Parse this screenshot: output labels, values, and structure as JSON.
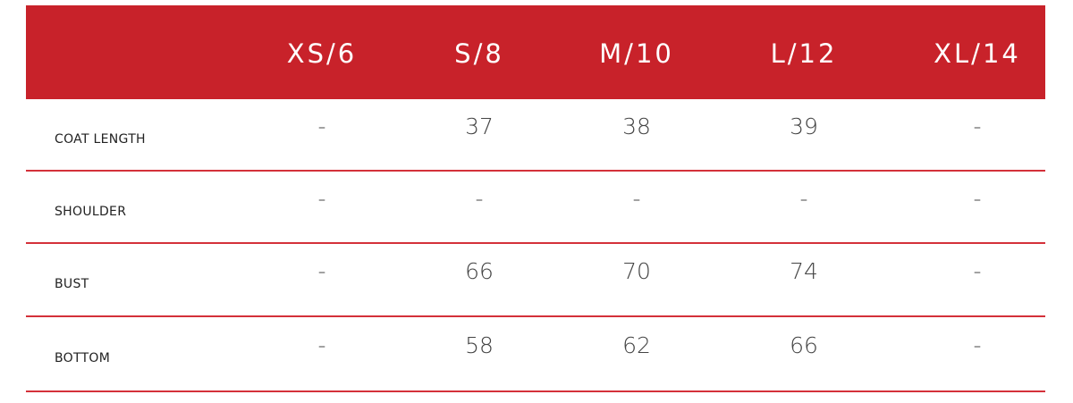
{
  "colors": {
    "header_bg": "#c8222a",
    "row_line": "#d4313a"
  },
  "table": {
    "headers": [
      "XS/6",
      "S/8",
      "M/10",
      "L/12",
      "XL/14"
    ],
    "rows": [
      {
        "label": "COAT LENGTH",
        "values": [
          "-",
          "37",
          "38",
          "39",
          "-"
        ]
      },
      {
        "label": "SHOULDER",
        "values": [
          "-",
          "-",
          "-",
          "-",
          "-"
        ]
      },
      {
        "label": "BUST",
        "values": [
          "-",
          "66",
          "70",
          "74",
          "-"
        ]
      },
      {
        "label": "BOTTOM",
        "values": [
          "-",
          "58",
          "62",
          "66",
          "-"
        ]
      }
    ]
  }
}
